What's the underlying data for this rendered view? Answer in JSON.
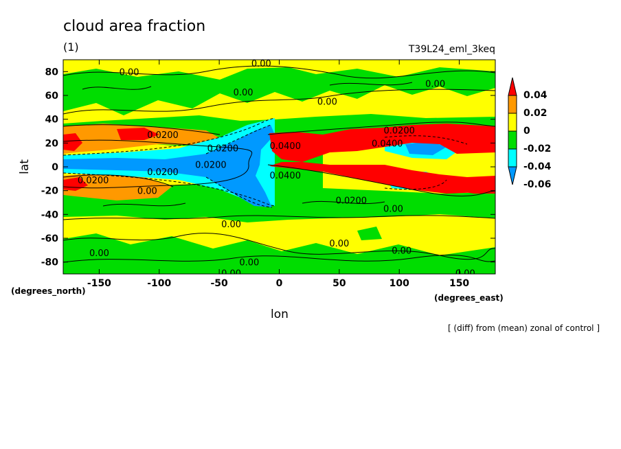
{
  "chart_data": {
    "type": "heatmap",
    "title": "cloud area fraction",
    "panel_label": "(1)",
    "experiment": "T39L24_eml_3keq",
    "footnote": "[ (diff) from (mean) zonal of control ]",
    "xlabel": "lon",
    "ylabel": "lat",
    "x_units": "(degrees_east)",
    "y_units": "(degrees_north)",
    "xlim": [
      -180,
      180
    ],
    "ylim": [
      -90,
      90
    ],
    "x_ticks": [
      "-150",
      "-100",
      "-50",
      "0",
      "50",
      "100",
      "150"
    ],
    "x_tick_values": [
      -150,
      -100,
      -50,
      0,
      50,
      100,
      150
    ],
    "y_ticks": [
      "80",
      "60",
      "40",
      "20",
      "0",
      "-20",
      "-40",
      "-60",
      "-80"
    ],
    "y_tick_values": [
      80,
      60,
      40,
      20,
      0,
      -20,
      -40,
      -60,
      -80
    ],
    "colorbar": {
      "labels": [
        "0.04",
        "0.02",
        "0",
        "-0.02",
        "-0.04",
        "-0.06"
      ],
      "levels": [
        0.04,
        0.02,
        0,
        -0.02,
        -0.04,
        -0.06
      ],
      "colors": [
        "#ff0000",
        "#ff9900",
        "#ffff00",
        "#00dd00",
        "#00ffff",
        "#0099ff"
      ]
    },
    "contour_labels": [
      {
        "text": "0.00",
        "lon": -125,
        "lat": 80
      },
      {
        "text": "0.00",
        "lon": -15,
        "lat": 87
      },
      {
        "text": "0.00",
        "lon": -30,
        "lat": 63
      },
      {
        "text": "0.00",
        "lon": 40,
        "lat": 55
      },
      {
        "text": "0.00",
        "lon": 130,
        "lat": 70
      },
      {
        "text": "0.0200",
        "lon": -97,
        "lat": 27
      },
      {
        "text": "0.0200",
        "lon": -47,
        "lat": 16
      },
      {
        "text": "0.0200",
        "lon": -97,
        "lat": -4
      },
      {
        "text": "0.0200",
        "lon": -155,
        "lat": -11
      },
      {
        "text": "0.0200",
        "lon": -57,
        "lat": 2
      },
      {
        "text": "0.00",
        "lon": -110,
        "lat": -20
      },
      {
        "text": "0.0400",
        "lon": 5,
        "lat": 18
      },
      {
        "text": "0.0400",
        "lon": 5,
        "lat": -7
      },
      {
        "text": "0.0200",
        "lon": 60,
        "lat": -28
      },
      {
        "text": "0.0200",
        "lon": 100,
        "lat": 31
      },
      {
        "text": "0.0400",
        "lon": 90,
        "lat": 20
      },
      {
        "text": "0.00",
        "lon": 95,
        "lat": -35
      },
      {
        "text": "0.00",
        "lon": -40,
        "lat": -48
      },
      {
        "text": "0.00",
        "lon": 50,
        "lat": -64
      },
      {
        "text": "0.00",
        "lon": -150,
        "lat": -72
      },
      {
        "text": "0.00",
        "lon": -25,
        "lat": -80
      },
      {
        "text": "0.00",
        "lon": 102,
        "lat": -70
      },
      {
        "text": "0.00",
        "lon": -40,
        "lat": -89
      },
      {
        "text": "0.00",
        "lon": 155,
        "lat": -89
      }
    ]
  }
}
